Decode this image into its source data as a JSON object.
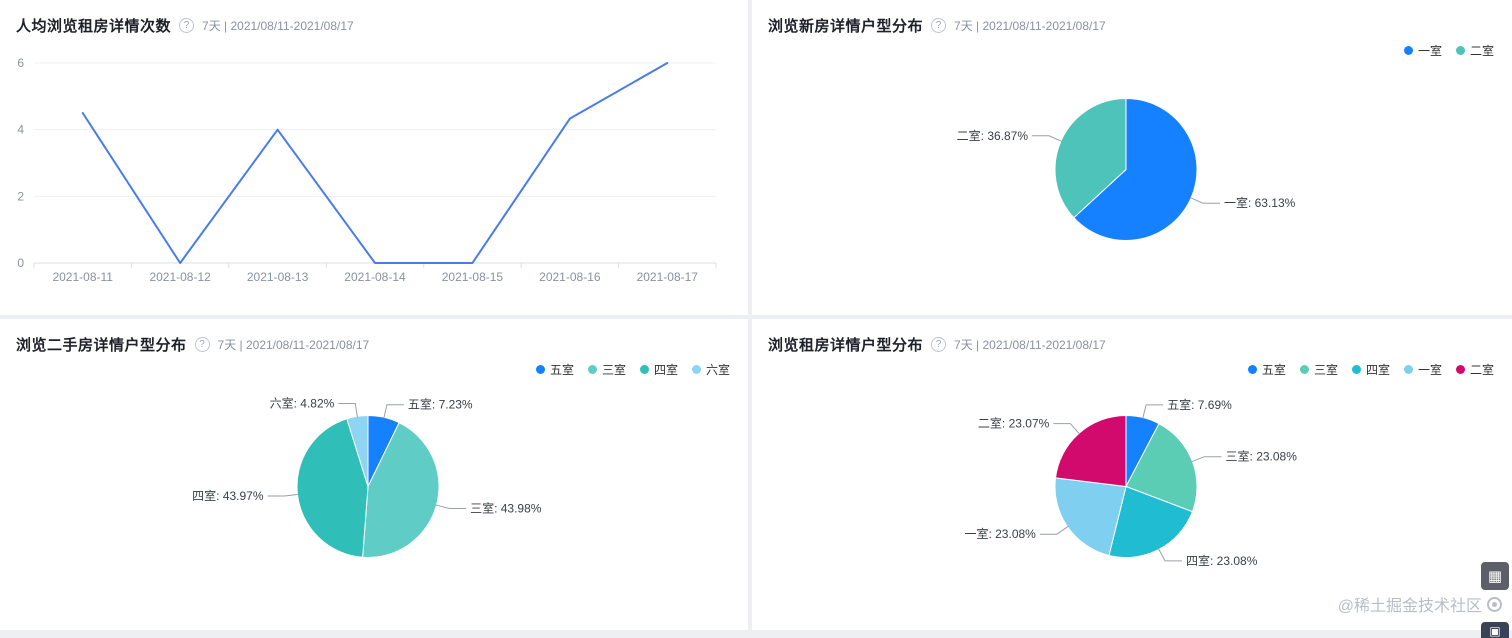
{
  "page": {
    "watermark": "@稀土掘金技术社区",
    "background": "#edeff2",
    "panel_background": "#ffffff"
  },
  "icons": {
    "help": "?",
    "qrcode": "▦",
    "partial_action": "▣"
  },
  "panels": [
    {
      "title": "人均浏览租房详情次数",
      "subtitle": "7天 | 2021/08/11-2021/08/17"
    },
    {
      "title": "浏览新房详情户型分布",
      "subtitle": "7天 | 2021/08/11-2021/08/17"
    },
    {
      "title": "浏览二手房详情户型分布",
      "subtitle": "7天 | 2021/08/11-2021/08/17"
    },
    {
      "title": "浏览租房详情户型分布",
      "subtitle": "7天 | 2021/08/11-2021/08/17"
    }
  ],
  "chart_data": [
    {
      "type": "line",
      "title": "人均浏览租房详情次数",
      "x": [
        "2021-08-11",
        "2021-08-12",
        "2021-08-13",
        "2021-08-14",
        "2021-08-15",
        "2021-08-16",
        "2021-08-17"
      ],
      "values": [
        4.5,
        0,
        4,
        0,
        0,
        4.33,
        6
      ],
      "ylim": [
        0,
        6
      ],
      "yticks": [
        0,
        2,
        4,
        6
      ],
      "color": "#4a7ce8",
      "grid": true,
      "legend_position": "none"
    },
    {
      "type": "pie",
      "title": "浏览新房详情户型分布",
      "legend_position": "top-right",
      "slices": [
        {
          "label": "一室",
          "value": 63.13,
          "color": "#1681ff"
        },
        {
          "label": "二室",
          "value": 36.87,
          "color": "#4ec3b9"
        }
      ]
    },
    {
      "type": "pie",
      "title": "浏览二手房详情户型分布",
      "legend_position": "top-right",
      "slices": [
        {
          "label": "五室",
          "value": 7.23,
          "color": "#1681ff"
        },
        {
          "label": "三室",
          "value": 43.98,
          "color": "#5fcdc5"
        },
        {
          "label": "四室",
          "value": 43.97,
          "color": "#2fbeb8"
        },
        {
          "label": "六室",
          "value": 4.82,
          "color": "#8fd4f2"
        }
      ]
    },
    {
      "type": "pie",
      "title": "浏览租房详情户型分布",
      "legend_position": "top-right",
      "slices": [
        {
          "label": "五室",
          "value": 7.69,
          "color": "#1681ff"
        },
        {
          "label": "三室",
          "value": 23.08,
          "color": "#5acdb4"
        },
        {
          "label": "四室",
          "value": 23.08,
          "color": "#1fbcd2"
        },
        {
          "label": "一室",
          "value": 23.08,
          "color": "#7fd0f0"
        },
        {
          "label": "二室",
          "value": 23.07,
          "color": "#d20a6e"
        }
      ]
    }
  ]
}
